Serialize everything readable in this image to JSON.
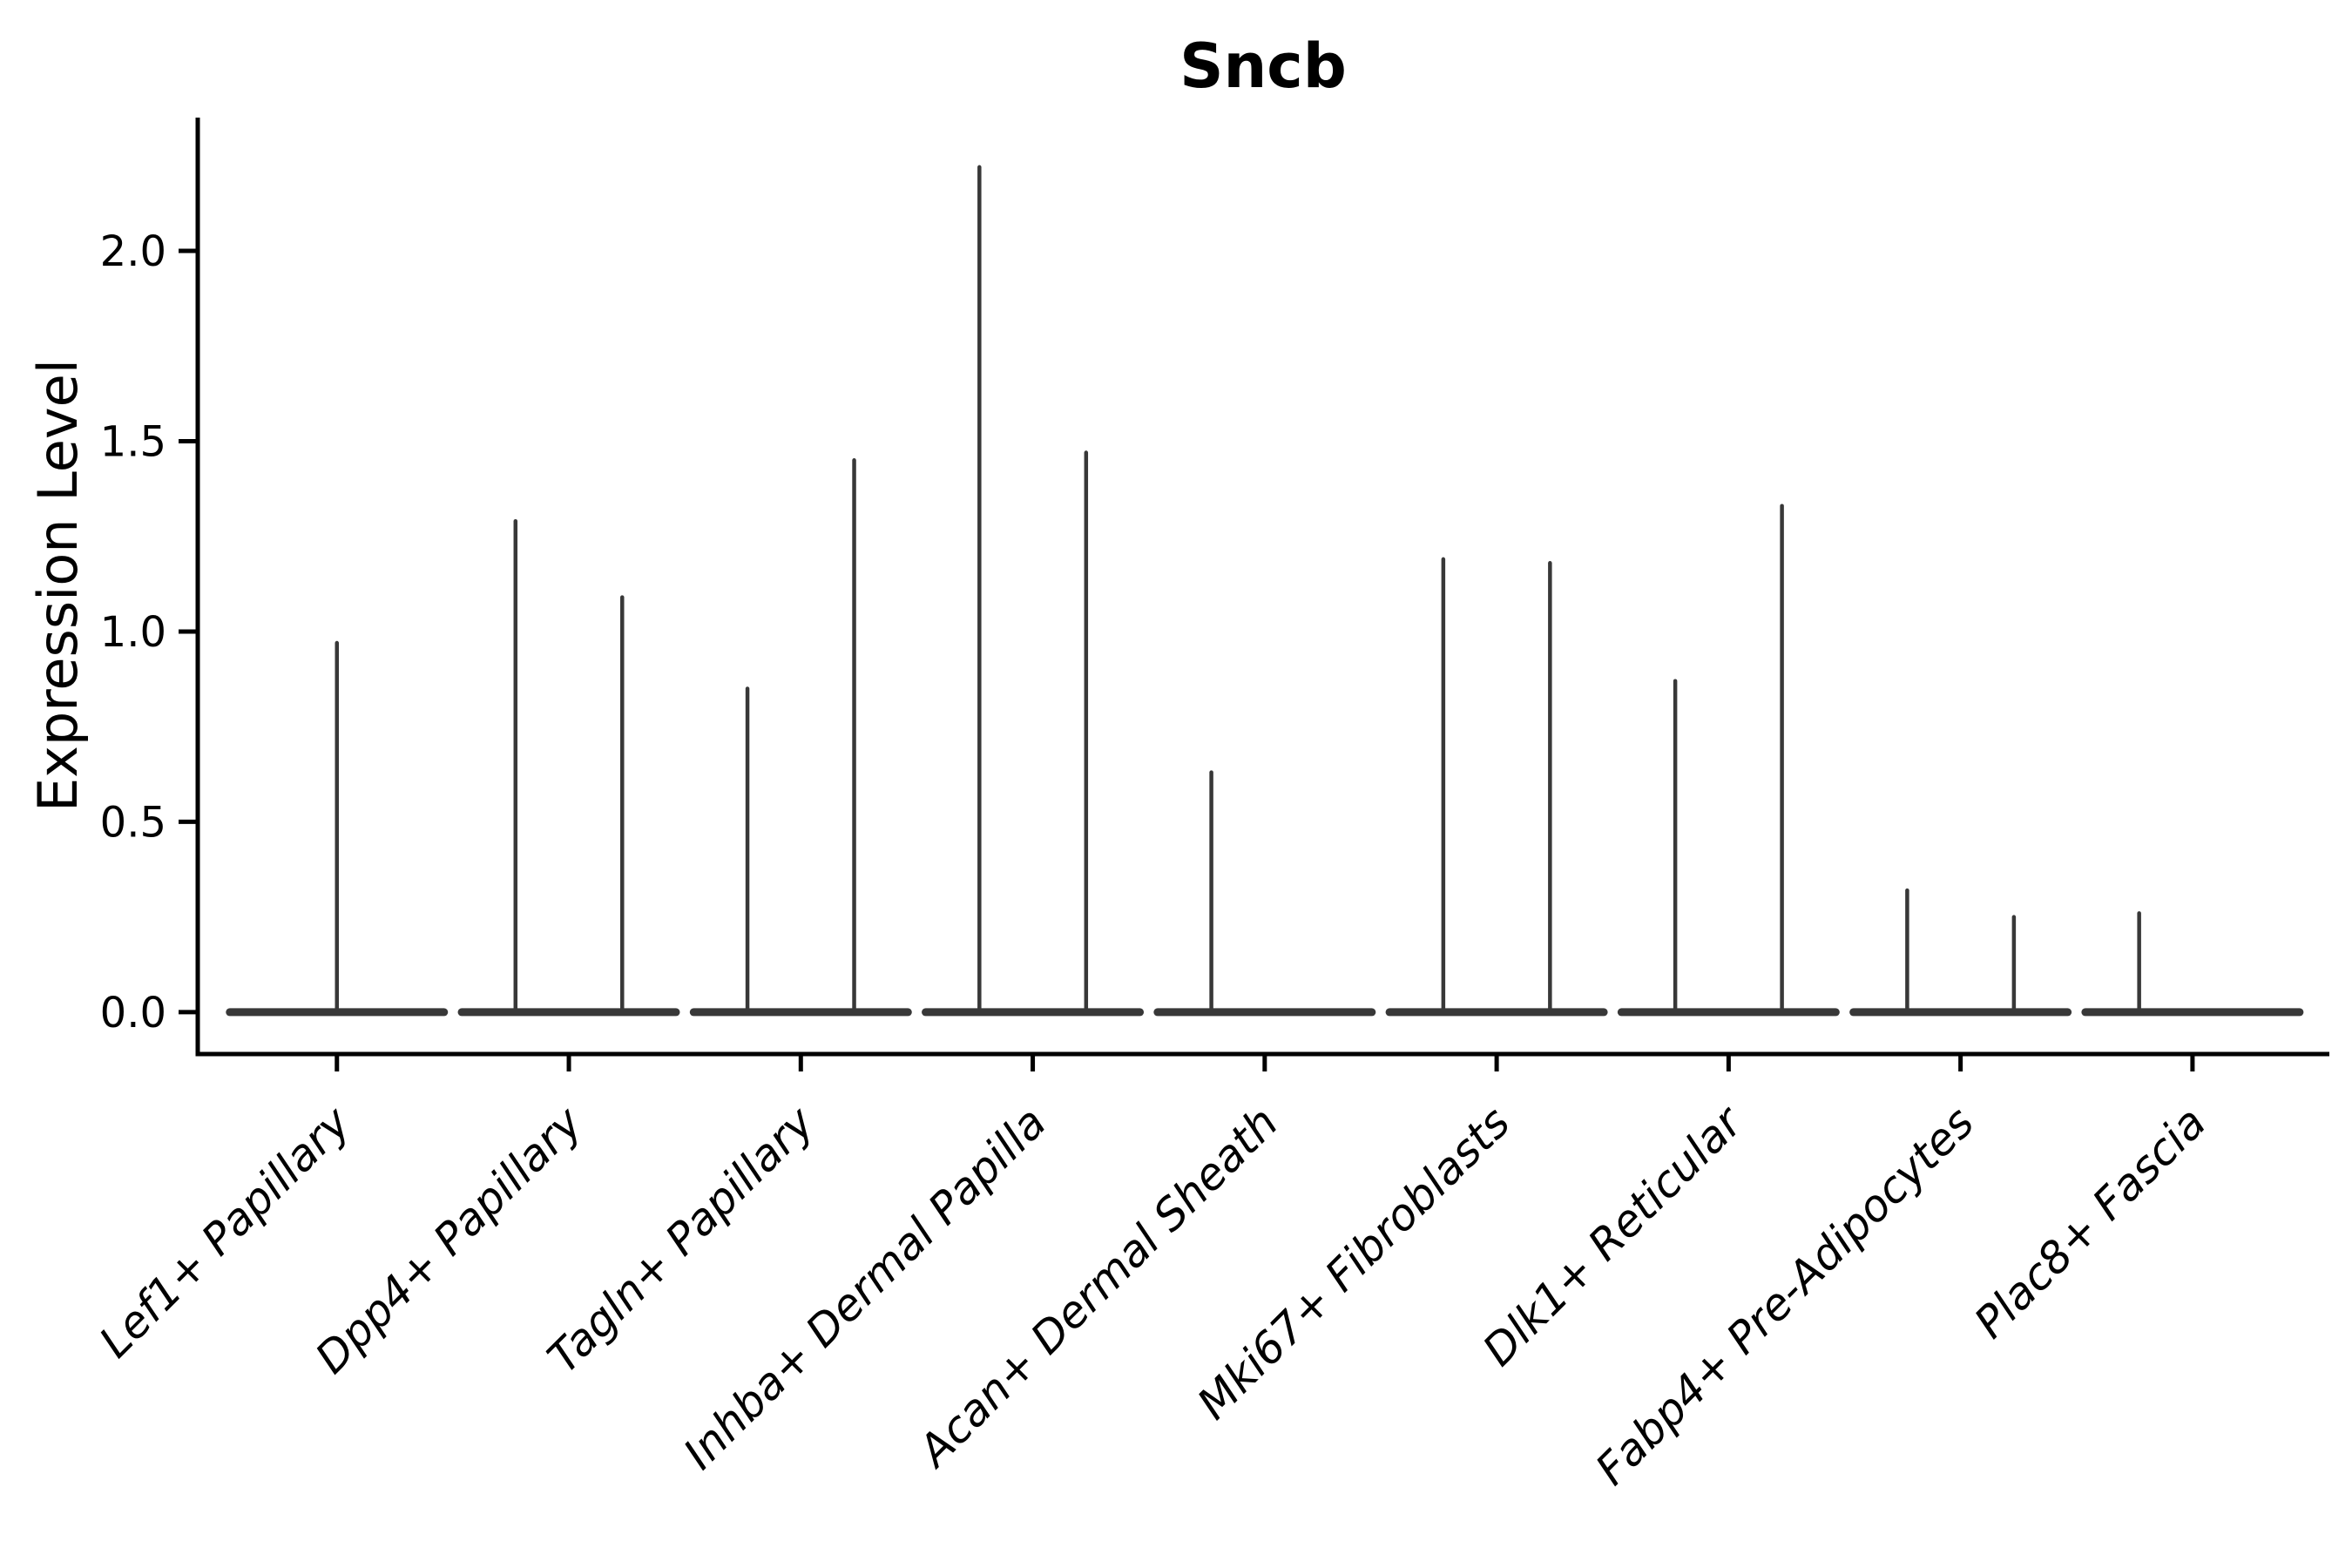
{
  "title": "Sncb",
  "chart_data": {
    "type": "violin",
    "title": "Sncb",
    "xlabel": "",
    "ylabel": "Expression Level",
    "ylim": [
      -0.11,
      2.35
    ],
    "xlim": [
      -0.6,
      8.59
    ],
    "yticks": [
      "0.0",
      "0.5",
      "1.0",
      "1.5",
      "2.0"
    ],
    "ytick_values": [
      0.0,
      0.5,
      1.0,
      1.5,
      2.0
    ],
    "grid": false,
    "legend": "none",
    "baseline_value": 0.0,
    "violin_color": "#383838",
    "axis_color": "#000000",
    "body_halfwidth": 0.462,
    "categories": [
      "Lef1+ Papillary",
      "Dpp4+ Papillary",
      "Tagln+ Papillary",
      "Inhba+ Dermal Papilla",
      "Acan+ Dermal Sheath",
      "Mki67+ Fibroblasts",
      "Dlk1+ Reticular",
      "Fabp4+ Pre-Adipocytes",
      "Plac8+ Fascia"
    ],
    "series": [
      {
        "label": "Lef1+ Papillary",
        "spikes": [
          {
            "pos": 0.0,
            "max": 0.97
          }
        ]
      },
      {
        "label": "Dpp4+ Papillary",
        "spikes": [
          {
            "pos": -0.23,
            "max": 1.29
          },
          {
            "pos": 0.23,
            "max": 1.09
          }
        ]
      },
      {
        "label": "Tagln+ Papillary",
        "spikes": [
          {
            "pos": -0.23,
            "max": 0.85
          },
          {
            "pos": 0.23,
            "max": 1.45
          }
        ]
      },
      {
        "label": "Inhba+ Dermal Papilla",
        "spikes": [
          {
            "pos": -0.23,
            "max": 2.22
          },
          {
            "pos": 0.23,
            "max": 1.47
          }
        ]
      },
      {
        "label": "Acan+ Dermal Sheath",
        "spikes": [
          {
            "pos": -0.23,
            "max": 0.63
          }
        ]
      },
      {
        "label": "Mki67+ Fibroblasts",
        "spikes": [
          {
            "pos": -0.23,
            "max": 1.19
          },
          {
            "pos": 0.23,
            "max": 1.18
          }
        ]
      },
      {
        "label": "Dlk1+ Reticular",
        "spikes": [
          {
            "pos": -0.23,
            "max": 0.87
          },
          {
            "pos": 0.23,
            "max": 1.33
          }
        ]
      },
      {
        "label": "Fabp4+ Pre-Adipocytes",
        "spikes": [
          {
            "pos": -0.23,
            "max": 0.32
          },
          {
            "pos": 0.23,
            "max": 0.25
          }
        ]
      },
      {
        "label": "Plac8+ Fascia",
        "spikes": [
          {
            "pos": -0.23,
            "max": 0.26
          }
        ]
      }
    ]
  }
}
